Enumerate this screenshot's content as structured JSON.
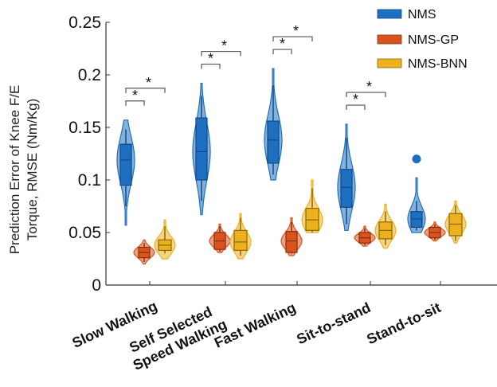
{
  "chart_data": {
    "type": "violin",
    "title": "",
    "ylabel_line1": "Prediction Error of Knee F/E",
    "ylabel_line2": "Torque, RMSE (Nm/Kg)",
    "xlabel": "",
    "ylim": [
      0,
      0.25
    ],
    "yticks": [
      "0",
      "0.05",
      "0.1",
      "0.15",
      "0.2",
      "0.25"
    ],
    "categories": [
      [
        "Slow Walking"
      ],
      [
        "Self Selected",
        "Speed Walking"
      ],
      [
        "Fast Walking"
      ],
      [
        "Sit-to-stand"
      ],
      [
        "Stand-to-sit"
      ]
    ],
    "significance_symbol": "*",
    "series": [
      {
        "name": "NMS",
        "color": "#1f6fc0",
        "edge": "#0f4a8a",
        "groups": [
          {
            "min": 0.057,
            "max": 0.157,
            "q1": 0.095,
            "median": 0.119,
            "q3": 0.134,
            "whisker_low": 0.075,
            "whisker_high": 0.148,
            "outliers": []
          },
          {
            "min": 0.067,
            "max": 0.192,
            "q1": 0.1,
            "median": 0.127,
            "q3": 0.159,
            "whisker_low": 0.08,
            "whisker_high": 0.18,
            "outliers": []
          },
          {
            "min": 0.1,
            "max": 0.206,
            "q1": 0.116,
            "median": 0.138,
            "q3": 0.156,
            "whisker_low": 0.105,
            "whisker_high": 0.19,
            "outliers": []
          },
          {
            "min": 0.052,
            "max": 0.153,
            "q1": 0.074,
            "median": 0.093,
            "q3": 0.11,
            "whisker_low": 0.058,
            "whisker_high": 0.14,
            "outliers": []
          },
          {
            "min": 0.05,
            "max": 0.102,
            "q1": 0.055,
            "median": 0.063,
            "q3": 0.07,
            "whisker_low": 0.052,
            "whisker_high": 0.08,
            "outliers": [
              0.12
            ]
          }
        ]
      },
      {
        "name": "NMS-GP",
        "color": "#d9531e",
        "edge": "#8a2f0c",
        "groups": [
          {
            "min": 0.02,
            "max": 0.043,
            "q1": 0.026,
            "median": 0.031,
            "q3": 0.036,
            "whisker_low": 0.022,
            "whisker_high": 0.04,
            "outliers": []
          },
          {
            "min": 0.031,
            "max": 0.058,
            "q1": 0.034,
            "median": 0.042,
            "q3": 0.05,
            "whisker_low": 0.032,
            "whisker_high": 0.056,
            "outliers": []
          },
          {
            "min": 0.028,
            "max": 0.064,
            "q1": 0.031,
            "median": 0.042,
            "q3": 0.051,
            "whisker_low": 0.03,
            "whisker_high": 0.06,
            "outliers": []
          },
          {
            "min": 0.037,
            "max": 0.056,
            "q1": 0.04,
            "median": 0.045,
            "q3": 0.05,
            "whisker_low": 0.038,
            "whisker_high": 0.054,
            "outliers": []
          },
          {
            "min": 0.042,
            "max": 0.06,
            "q1": 0.045,
            "median": 0.05,
            "q3": 0.055,
            "whisker_low": 0.043,
            "whisker_high": 0.058,
            "outliers": []
          }
        ]
      },
      {
        "name": "NMS-BNN",
        "color": "#edb120",
        "edge": "#8a6a00",
        "groups": [
          {
            "min": 0.025,
            "max": 0.062,
            "q1": 0.033,
            "median": 0.038,
            "q3": 0.043,
            "whisker_low": 0.03,
            "whisker_high": 0.056,
            "outliers": []
          },
          {
            "min": 0.025,
            "max": 0.068,
            "q1": 0.033,
            "median": 0.041,
            "q3": 0.052,
            "whisker_low": 0.028,
            "whisker_high": 0.064,
            "outliers": []
          },
          {
            "min": 0.05,
            "max": 0.1,
            "q1": 0.052,
            "median": 0.062,
            "q3": 0.073,
            "whisker_low": 0.05,
            "whisker_high": 0.092,
            "outliers": []
          },
          {
            "min": 0.035,
            "max": 0.077,
            "q1": 0.044,
            "median": 0.052,
            "q3": 0.06,
            "whisker_low": 0.038,
            "whisker_high": 0.07,
            "outliers": []
          },
          {
            "min": 0.04,
            "max": 0.08,
            "q1": 0.047,
            "median": 0.058,
            "q3": 0.068,
            "whisker_low": 0.042,
            "whisker_high": 0.076,
            "outliers": []
          }
        ]
      }
    ],
    "significance_groups": [
      0,
      1,
      2,
      3
    ],
    "legend_position": "top-right"
  }
}
